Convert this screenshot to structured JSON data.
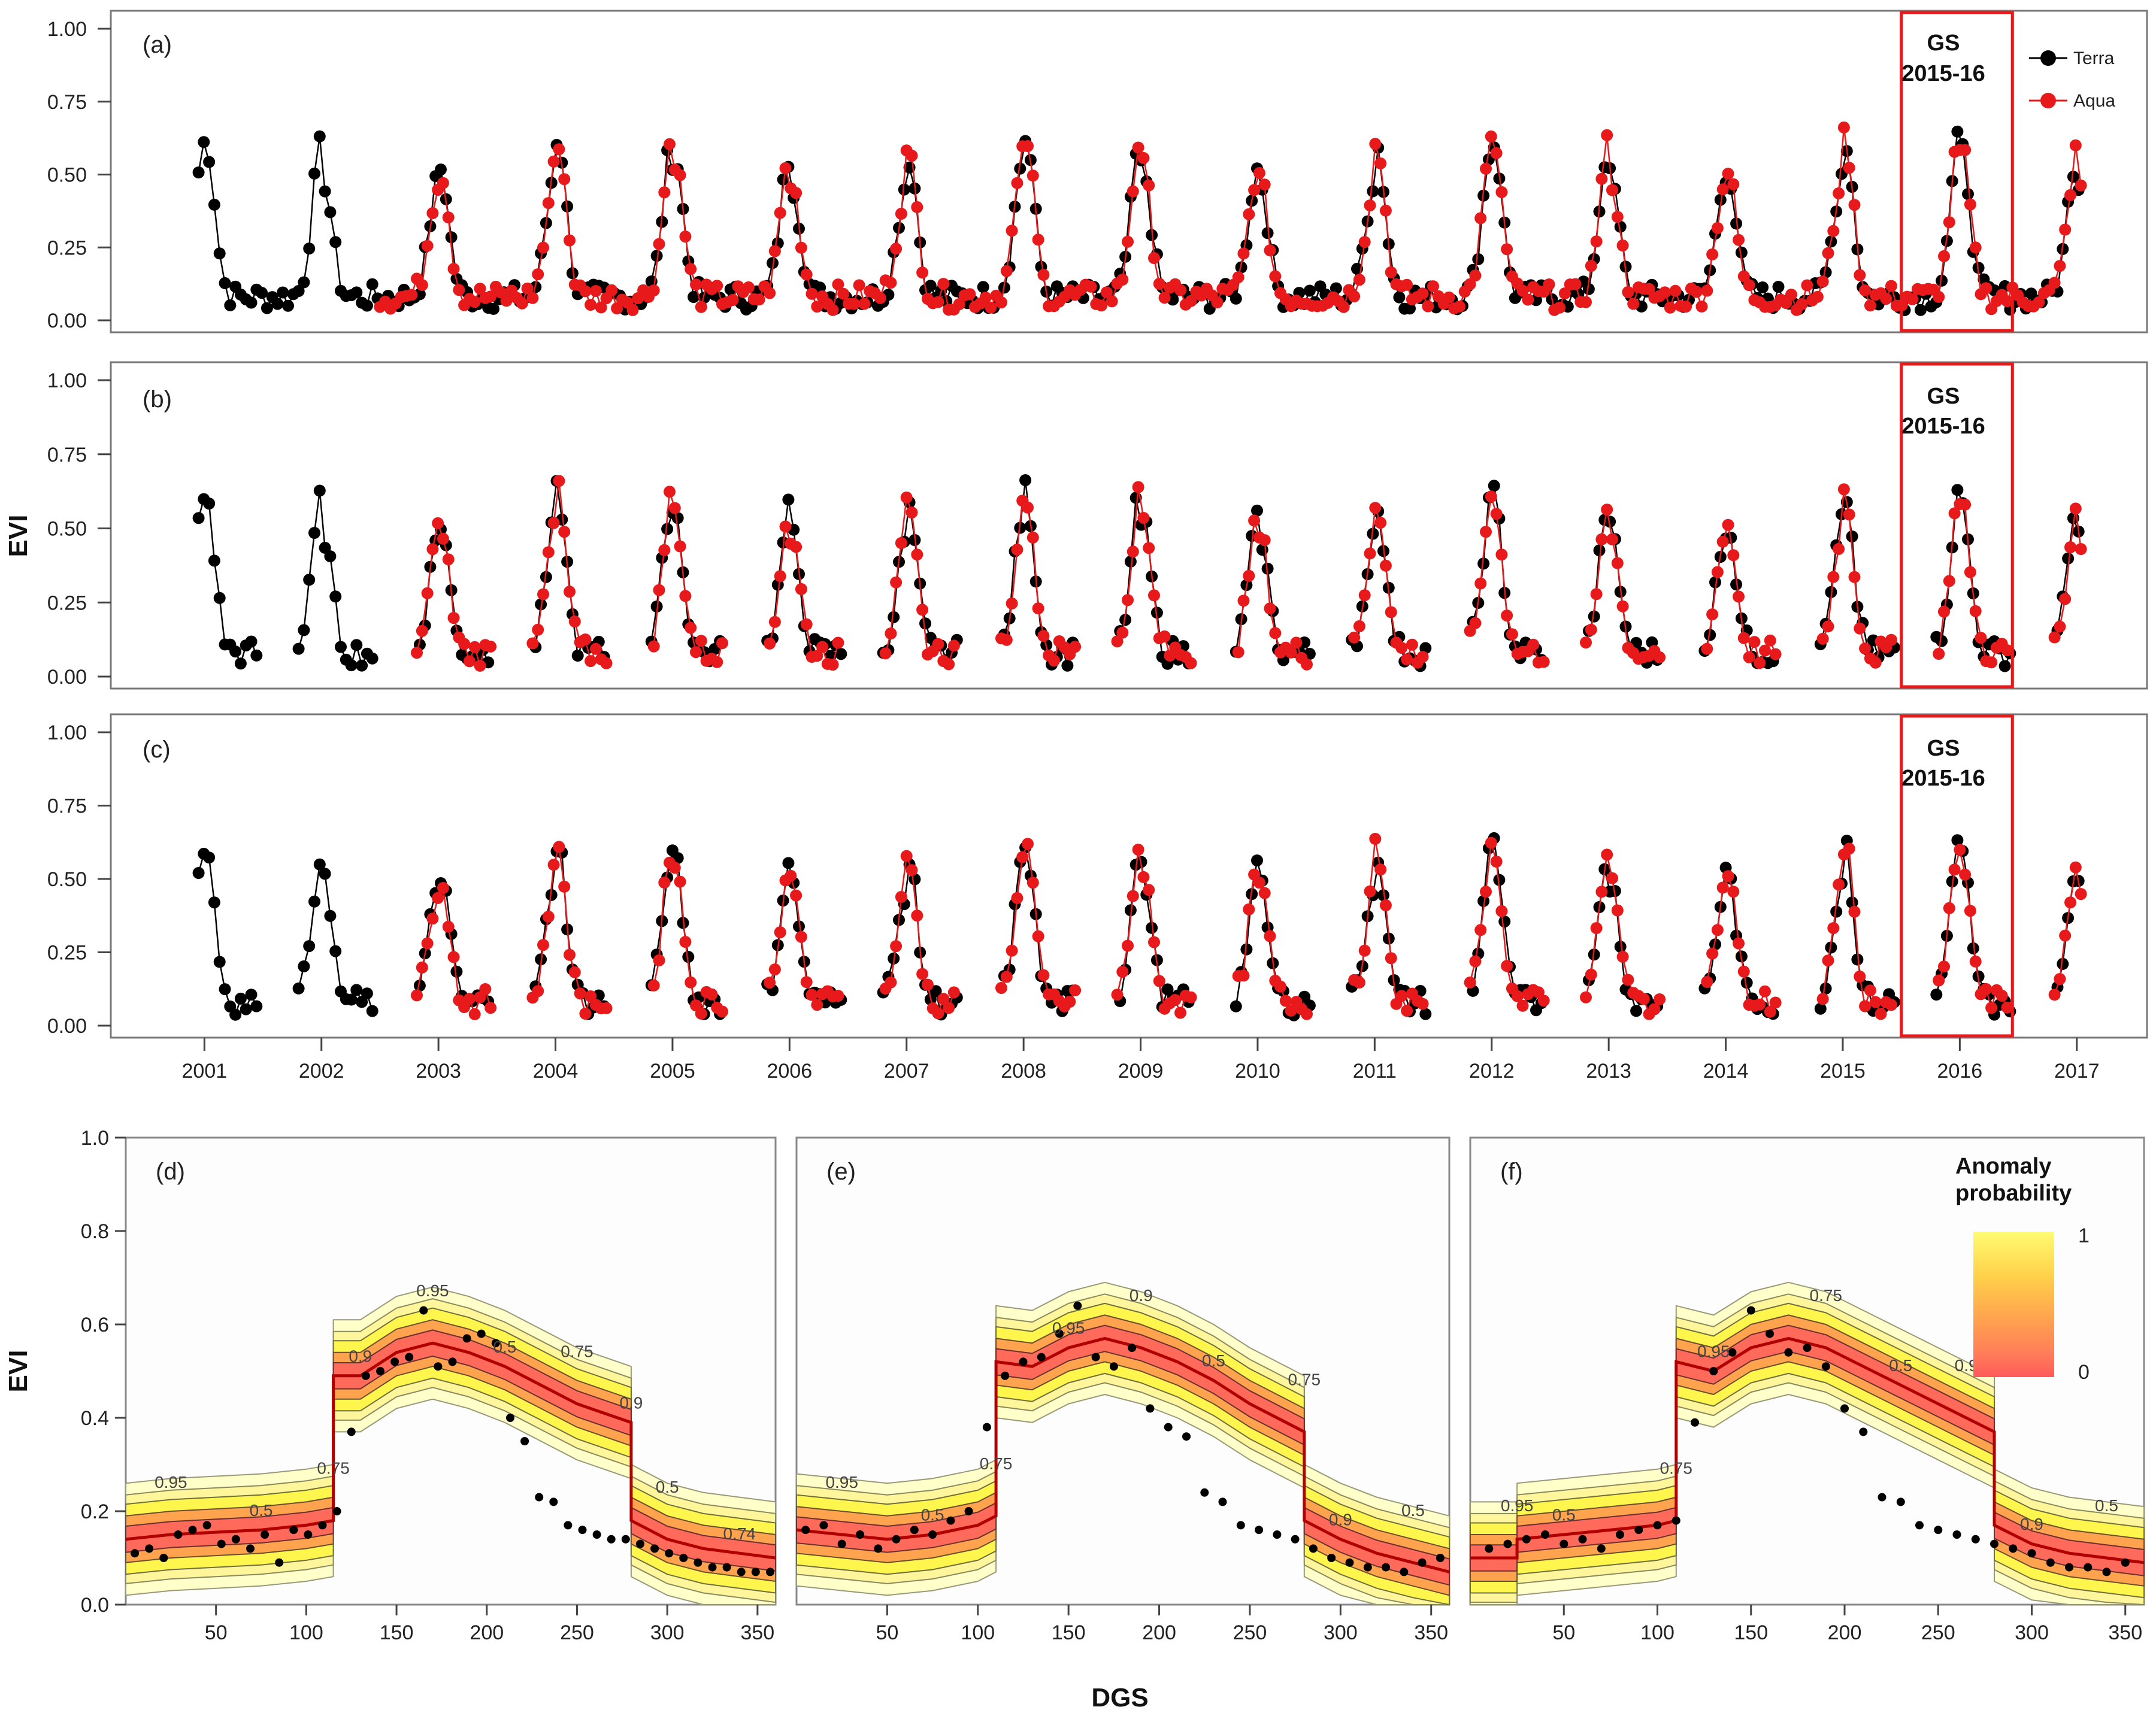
{
  "y_axis_title": "EVI",
  "x_axis_title_bottom": "DGS",
  "chart_data": [
    {
      "type": "line",
      "panel": "(a)",
      "gs_box_label": [
        "GS",
        "2015-16"
      ],
      "legend": [
        {
          "name": "Terra",
          "color": "#000000"
        },
        {
          "name": "Aqua",
          "color": "#e8191a"
        }
      ],
      "ylim": [
        0,
        1
      ],
      "yticks": [
        "0.00",
        "0.25",
        "0.50",
        "0.75",
        "1.00"
      ],
      "xlim": [
        2000.2,
        2017.6
      ],
      "gs_range": [
        2015.5,
        2016.45
      ],
      "ylabel": "",
      "series": [
        {
          "name": "Terra",
          "color": "#000000"
        },
        {
          "name": "Aqua",
          "color": "#e8191a"
        }
      ]
    },
    {
      "type": "line",
      "panel": "(b)",
      "gs_box_label": [
        "GS",
        "2015-16"
      ],
      "ylim": [
        0,
        1
      ],
      "yticks": [
        "0.00",
        "0.25",
        "0.50",
        "0.75",
        "1.00"
      ],
      "xlim": [
        2000.2,
        2017.6
      ],
      "gs_range": [
        2015.5,
        2016.45
      ],
      "ylabel": "EVI"
    },
    {
      "type": "line",
      "panel": "(c)",
      "gs_box_label": [
        "GS",
        "2015-16"
      ],
      "ylim": [
        0,
        1
      ],
      "yticks": [
        "0.00",
        "0.25",
        "0.50",
        "0.75",
        "1.00"
      ],
      "xlim": [
        2000.2,
        2017.6
      ],
      "gs_range": [
        2015.5,
        2016.45
      ],
      "xticks": [
        "2001",
        "2002",
        "2003",
        "2004",
        "2005",
        "2006",
        "2007",
        "2008",
        "2009",
        "2010",
        "2011",
        "2012",
        "2013",
        "2014",
        "2015",
        "2016",
        "2017"
      ]
    },
    {
      "type": "heatmap",
      "panel": "(d)",
      "xlim": [
        0,
        360
      ],
      "ylim": [
        0,
        1
      ],
      "xticks": [
        "50",
        "100",
        "150",
        "200",
        "250",
        "300",
        "350"
      ],
      "yticks": [
        "0.0",
        "0.2",
        "0.4",
        "0.6",
        "0.8",
        "1.0"
      ],
      "contour_labels": [
        "0.95",
        "0.5",
        "0.75",
        "0.9",
        "0.95",
        "0.5",
        "0.75",
        "0.9",
        "0.5",
        "0.74"
      ],
      "median_curve": {
        "x": [
          0,
          25,
          50,
          75,
          100,
          115,
          115,
          130,
          150,
          170,
          190,
          210,
          230,
          250,
          265,
          280,
          280,
          300,
          320,
          340,
          360
        ],
        "y": [
          0.14,
          0.15,
          0.155,
          0.16,
          0.17,
          0.18,
          0.49,
          0.49,
          0.54,
          0.56,
          0.54,
          0.51,
          0.47,
          0.43,
          0.41,
          0.39,
          0.18,
          0.14,
          0.12,
          0.11,
          0.1
        ]
      },
      "observations": {
        "x": [
          5,
          13,
          21,
          29,
          37,
          45,
          53,
          61,
          69,
          77,
          85,
          93,
          101,
          109,
          117,
          125,
          133,
          141,
          149,
          157,
          165,
          173,
          181,
          189,
          197,
          205,
          213,
          221,
          229,
          237,
          245,
          253,
          261,
          269,
          277,
          285,
          293,
          301,
          309,
          317,
          325,
          333,
          341,
          349,
          357
        ],
        "y": [
          0.11,
          0.12,
          0.1,
          0.15,
          0.16,
          0.17,
          0.13,
          0.14,
          0.12,
          0.15,
          0.09,
          0.16,
          0.15,
          0.17,
          0.2,
          0.37,
          0.49,
          0.5,
          0.52,
          0.53,
          0.63,
          0.51,
          0.52,
          0.57,
          0.58,
          0.56,
          0.4,
          0.35,
          0.23,
          0.22,
          0.17,
          0.16,
          0.15,
          0.14,
          0.14,
          0.13,
          0.12,
          0.11,
          0.1,
          0.09,
          0.08,
          0.08,
          0.07,
          0.07,
          0.07
        ]
      }
    },
    {
      "type": "heatmap",
      "panel": "(e)",
      "xlim": [
        0,
        360
      ],
      "ylim": [
        0,
        1
      ],
      "xticks": [
        "50",
        "100",
        "150",
        "200",
        "250",
        "300",
        "350"
      ],
      "contour_labels": [
        "0.95",
        "0.5",
        "0.75",
        "0.95",
        "0.9",
        "0.5",
        "0.75",
        "0.9",
        "0.5"
      ],
      "median_curve": {
        "x": [
          0,
          25,
          50,
          75,
          100,
          110,
          110,
          130,
          150,
          170,
          190,
          210,
          230,
          250,
          265,
          280,
          280,
          300,
          320,
          340,
          360
        ],
        "y": [
          0.16,
          0.15,
          0.14,
          0.15,
          0.17,
          0.19,
          0.52,
          0.51,
          0.55,
          0.57,
          0.55,
          0.52,
          0.48,
          0.43,
          0.4,
          0.37,
          0.18,
          0.14,
          0.11,
          0.09,
          0.07
        ]
      },
      "observations": {
        "x": [
          5,
          15,
          25,
          35,
          45,
          55,
          65,
          75,
          85,
          95,
          105,
          115,
          125,
          135,
          145,
          155,
          165,
          175,
          185,
          195,
          205,
          215,
          225,
          235,
          245,
          255,
          265,
          275,
          285,
          295,
          305,
          315,
          325,
          335,
          345,
          355
        ],
        "y": [
          0.16,
          0.17,
          0.13,
          0.15,
          0.12,
          0.14,
          0.16,
          0.15,
          0.18,
          0.2,
          0.38,
          0.49,
          0.52,
          0.53,
          0.58,
          0.64,
          0.53,
          0.51,
          0.55,
          0.42,
          0.38,
          0.36,
          0.24,
          0.22,
          0.17,
          0.16,
          0.15,
          0.14,
          0.12,
          0.1,
          0.09,
          0.08,
          0.08,
          0.07,
          0.09,
          0.1
        ]
      }
    },
    {
      "type": "heatmap",
      "panel": "(f)",
      "xlim": [
        0,
        360
      ],
      "ylim": [
        0,
        1
      ],
      "xticks": [
        "50",
        "100",
        "150",
        "200",
        "250",
        "300",
        "350"
      ],
      "contour_labels": [
        "0.95",
        "0.5",
        "0.75",
        "0.95",
        "0.75",
        "0.5",
        "0.9",
        "0.9",
        "0.5"
      ],
      "median_curve": {
        "x": [
          0,
          25,
          25,
          50,
          75,
          100,
          110,
          110,
          130,
          150,
          170,
          190,
          210,
          230,
          250,
          265,
          280,
          280,
          300,
          320,
          340,
          360
        ],
        "y": [
          0.1,
          0.1,
          0.14,
          0.15,
          0.16,
          0.17,
          0.18,
          0.52,
          0.5,
          0.55,
          0.57,
          0.55,
          0.51,
          0.47,
          0.43,
          0.4,
          0.37,
          0.17,
          0.13,
          0.11,
          0.1,
          0.09
        ]
      },
      "observations": {
        "x": [
          10,
          20,
          30,
          40,
          50,
          60,
          70,
          80,
          90,
          100,
          110,
          120,
          130,
          140,
          150,
          160,
          170,
          180,
          190,
          200,
          210,
          220,
          230,
          240,
          250,
          260,
          270,
          280,
          290,
          300,
          310,
          320,
          330,
          340,
          350
        ],
        "y": [
          0.12,
          0.13,
          0.14,
          0.15,
          0.13,
          0.14,
          0.12,
          0.15,
          0.16,
          0.17,
          0.18,
          0.39,
          0.5,
          0.54,
          0.63,
          0.58,
          0.54,
          0.55,
          0.51,
          0.42,
          0.37,
          0.23,
          0.22,
          0.17,
          0.16,
          0.15,
          0.14,
          0.13,
          0.12,
          0.11,
          0.09,
          0.08,
          0.08,
          0.07,
          0.09
        ]
      },
      "colorbar": {
        "title": [
          "Anomaly",
          "probability"
        ],
        "max_label": "1",
        "min_label": "0",
        "colors": [
          "#fffb74",
          "#ffd24a",
          "#ffa34e",
          "#ff7b5a",
          "#ff5a5a"
        ]
      }
    }
  ]
}
